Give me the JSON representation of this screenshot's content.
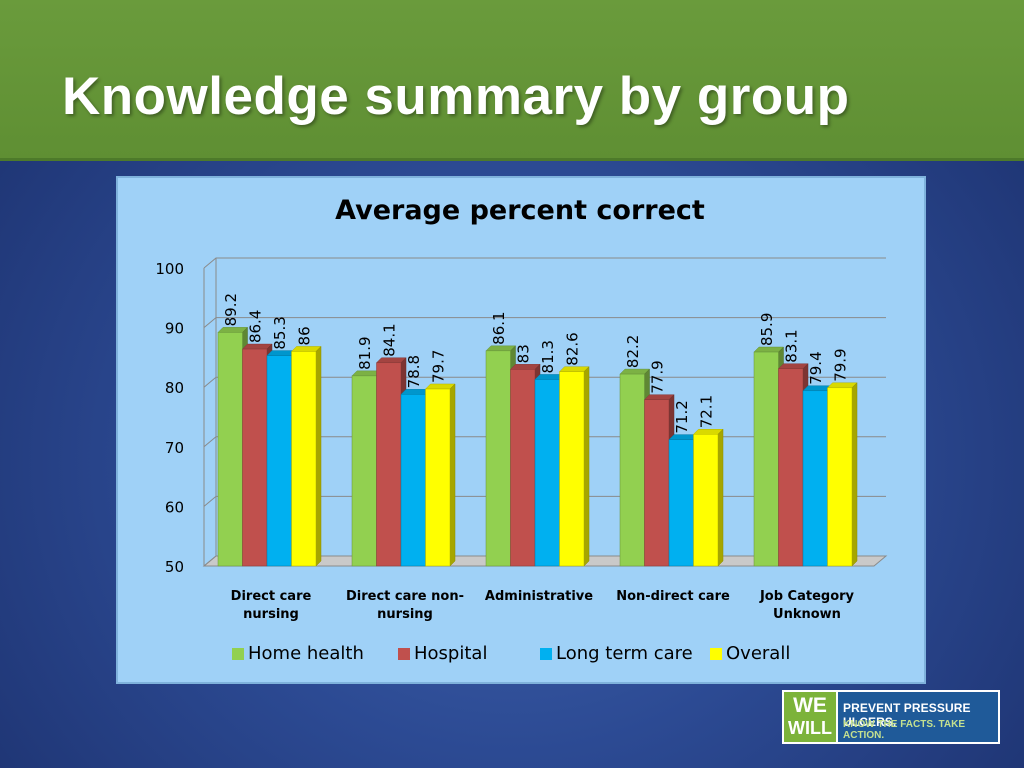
{
  "slide": {
    "title": "Knowledge summary by group"
  },
  "colors": {
    "banner": "#6a9b3c",
    "chart_background": "#9fd1f7",
    "series": [
      "#92d050",
      "#c0504d",
      "#00b0f0",
      "#ffff00"
    ]
  },
  "chart_data": {
    "type": "bar",
    "title": "Average percent correct",
    "xlabel": "",
    "ylabel": "",
    "ylim": [
      50,
      100
    ],
    "yticks": [
      50,
      60,
      70,
      80,
      90,
      100
    ],
    "grid": true,
    "legend": "bottom",
    "categories": [
      [
        "Direct care",
        "nursing"
      ],
      [
        "Direct care  non-",
        "nursing"
      ],
      [
        "Administrative"
      ],
      [
        "Non-direct care"
      ],
      [
        "Job Category",
        "Unknown"
      ]
    ],
    "series": [
      {
        "name": "Home health",
        "values": [
          89.2,
          81.9,
          86.1,
          82.2,
          85.9
        ]
      },
      {
        "name": "Hospital",
        "values": [
          86.4,
          84.1,
          83,
          77.9,
          83.1
        ]
      },
      {
        "name": "Long term care",
        "values": [
          85.3,
          78.8,
          81.3,
          71.2,
          79.4
        ]
      },
      {
        "name": "Overall",
        "values": [
          86,
          79.7,
          82.6,
          72.1,
          79.9
        ]
      }
    ]
  },
  "logo": {
    "we": "WE",
    "will": "WILL",
    "line1": "PREVENT PRESSURE ULCERS.",
    "line2": "KNOW THE FACTS. TAKE ACTION."
  }
}
